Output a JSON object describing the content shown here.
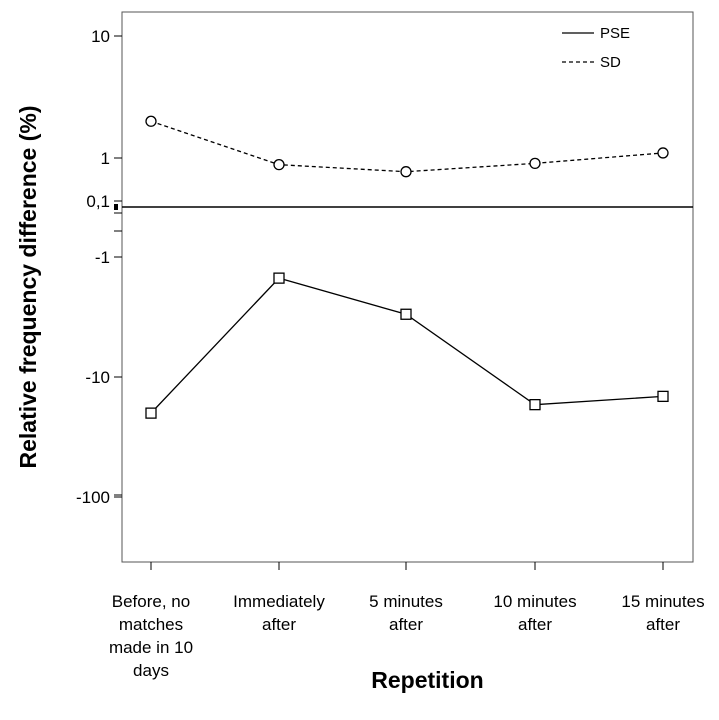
{
  "chart_data": {
    "type": "line",
    "xlabel": "Repetition",
    "ylabel": "Relative frequency difference (%)",
    "categories": [
      [
        "Before, no",
        "matches",
        "made in 10",
        "days"
      ],
      [
        "Immediately",
        "after"
      ],
      [
        "5 minutes",
        "after"
      ],
      [
        "10 minutes",
        "after"
      ],
      [
        "15 minutes",
        "after"
      ]
    ],
    "y_ticks": [
      "10",
      "1",
      "0,1",
      "-1",
      "-10",
      "-100"
    ],
    "legend": {
      "position": "top-right",
      "entries": [
        "PSE",
        "SD"
      ]
    },
    "series": [
      {
        "name": "PSE",
        "line_style": "solid",
        "marker": "square",
        "values": [
          -20,
          -1.5,
          -3.0,
          -17,
          -14.5
        ]
      },
      {
        "name": "SD",
        "line_style": "dashed",
        "marker": "circle",
        "values": [
          2.0,
          0.7,
          0.48,
          0.75,
          1.1
        ]
      }
    ],
    "reference_line": {
      "value": 0
    },
    "grid": false,
    "colors": {
      "line": "#000000",
      "background": "#ffffff"
    }
  }
}
